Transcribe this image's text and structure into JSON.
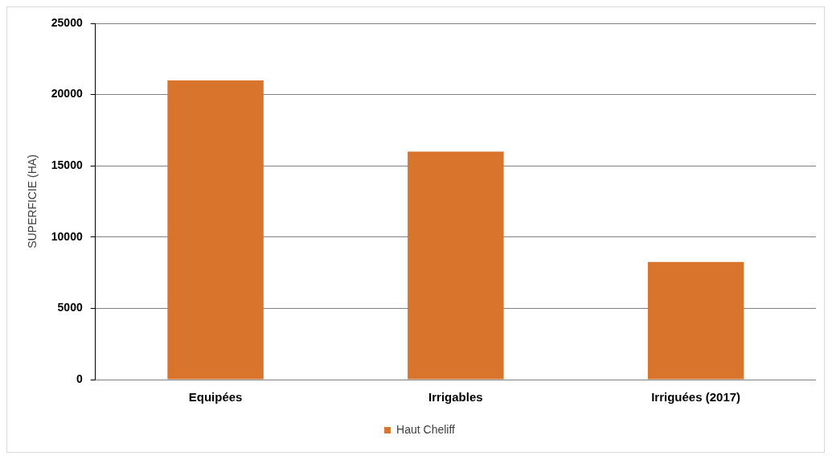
{
  "chart_data": {
    "type": "bar",
    "ylabel": "SUPERFICIE (HA)",
    "categories": [
      "Equipées",
      "Irrigables",
      "Irriguées (2017)"
    ],
    "series": [
      {
        "name": "Haut Cheliff",
        "color": "#d9742c",
        "values": [
          21000,
          16000,
          8250
        ]
      }
    ],
    "ylim": [
      0,
      25000
    ],
    "yticks": [
      0,
      5000,
      10000,
      15000,
      20000,
      25000
    ],
    "grid": "y",
    "legend": "bottom"
  }
}
